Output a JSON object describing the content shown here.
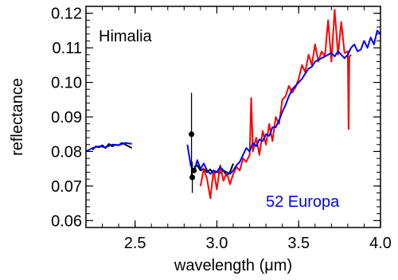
{
  "chart_data": {
    "type": "line",
    "title": "",
    "xlabel": "wavelength (μm)",
    "ylabel": "reflectance",
    "xlim": [
      2.2,
      4.0
    ],
    "ylim": [
      0.058,
      0.122
    ],
    "x_ticks": [
      2.5,
      3.0,
      3.5,
      4.0
    ],
    "x_tick_labels": [
      "2.5",
      "3.0",
      "3.5",
      "4.0"
    ],
    "y_ticks": [
      0.06,
      0.07,
      0.08,
      0.09,
      0.1,
      0.11,
      0.12
    ],
    "y_tick_labels": [
      "0.06",
      "0.07",
      "0.08",
      "0.09",
      "0.10",
      "0.11",
      "0.12"
    ],
    "grid": false,
    "annotations": [
      {
        "text": "Himalia",
        "color": "#000000",
        "position": "top-left"
      },
      {
        "text": "52 Europa",
        "color": "#0000ff",
        "position": "bottom-right"
      }
    ],
    "series": [
      {
        "name": "Himalia (black)",
        "color": "#000000",
        "x": [
          2.24,
          2.26,
          2.28,
          2.3,
          2.32,
          2.34,
          2.36,
          2.38,
          2.4,
          2.42,
          2.44,
          2.46,
          2.48,
          2.86,
          2.88,
          2.9,
          2.92,
          2.94,
          2.96,
          2.98,
          3.0,
          3.02,
          3.04,
          3.06,
          3.08,
          3.1
        ],
        "y": [
          0.0805,
          0.0815,
          0.0812,
          0.0818,
          0.081,
          0.0822,
          0.0815,
          0.082,
          0.0818,
          0.0825,
          0.082,
          0.0815,
          0.081,
          0.0755,
          0.076,
          0.0745,
          0.075,
          0.074,
          0.0748,
          0.0735,
          0.0742,
          0.0738,
          0.0745,
          0.073,
          0.074,
          0.0765
        ]
      },
      {
        "name": "Himalia points",
        "color": "#000000",
        "points": [
          {
            "x": 2.845,
            "y": 0.085,
            "err": 0.012
          },
          {
            "x": 2.85,
            "y": 0.0725,
            "err": 0.0045
          },
          {
            "x": 2.86,
            "y": 0.0745,
            "err": 0.0
          }
        ]
      },
      {
        "name": "Himalia (red)",
        "color": "#ff0000",
        "x": [
          2.9,
          2.92,
          2.94,
          2.96,
          2.98,
          3.0,
          3.02,
          3.04,
          3.06,
          3.08,
          3.1,
          3.12,
          3.14,
          3.16,
          3.18,
          3.2,
          3.21,
          3.22,
          3.24,
          3.26,
          3.28,
          3.3,
          3.32,
          3.34,
          3.36,
          3.38,
          3.4,
          3.42,
          3.44,
          3.46,
          3.48,
          3.5,
          3.52,
          3.54,
          3.56,
          3.58,
          3.6,
          3.62,
          3.64,
          3.66,
          3.68,
          3.7,
          3.72,
          3.74,
          3.76,
          3.78,
          3.8,
          3.805,
          3.81,
          3.82
        ],
        "y": [
          0.07,
          0.075,
          0.072,
          0.0665,
          0.0745,
          0.069,
          0.076,
          0.0715,
          0.074,
          0.0705,
          0.0735,
          0.0755,
          0.0745,
          0.078,
          0.077,
          0.079,
          0.0955,
          0.08,
          0.084,
          0.079,
          0.086,
          0.082,
          0.088,
          0.083,
          0.09,
          0.088,
          0.095,
          0.096,
          0.099,
          0.097,
          0.0985,
          0.101,
          0.105,
          0.103,
          0.108,
          0.105,
          0.111,
          0.106,
          0.109,
          0.1075,
          0.118,
          0.106,
          0.121,
          0.108,
          0.1175,
          0.1085,
          0.109,
          0.0865,
          0.1075,
          0.108
        ]
      },
      {
        "name": "52 Europa",
        "color": "#0000ff",
        "x": [
          2.2,
          2.24,
          2.28,
          2.32,
          2.36,
          2.4,
          2.44,
          2.48,
          2.82,
          2.84,
          2.86,
          2.88,
          2.9,
          2.92,
          2.94,
          2.96,
          2.98,
          3.0,
          3.02,
          3.04,
          3.06,
          3.08,
          3.1,
          3.12,
          3.14,
          3.16,
          3.18,
          3.2,
          3.22,
          3.24,
          3.26,
          3.28,
          3.3,
          3.32,
          3.34,
          3.36,
          3.38,
          3.4,
          3.42,
          3.44,
          3.46,
          3.48,
          3.5,
          3.52,
          3.54,
          3.56,
          3.58,
          3.6,
          3.62,
          3.64,
          3.66,
          3.68,
          3.7,
          3.72,
          3.74,
          3.76,
          3.78,
          3.8,
          3.82,
          3.84,
          3.86,
          3.88,
          3.9,
          3.92,
          3.94,
          3.96,
          3.98,
          4.0
        ],
        "y": [
          0.08,
          0.081,
          0.0815,
          0.0812,
          0.082,
          0.0818,
          0.0825,
          0.0822,
          0.082,
          0.076,
          0.074,
          0.0775,
          0.075,
          0.0765,
          0.0745,
          0.0735,
          0.0745,
          0.074,
          0.0755,
          0.0745,
          0.074,
          0.0735,
          0.0745,
          0.076,
          0.077,
          0.079,
          0.081,
          0.08,
          0.0825,
          0.0815,
          0.0835,
          0.083,
          0.085,
          0.0845,
          0.087,
          0.087,
          0.089,
          0.0915,
          0.0935,
          0.096,
          0.098,
          0.099,
          0.1,
          0.101,
          0.1025,
          0.104,
          0.1045,
          0.106,
          0.1065,
          0.107,
          0.1075,
          0.108,
          0.1085,
          0.1075,
          0.109,
          0.108,
          0.107,
          0.108,
          0.11,
          0.111,
          0.109,
          0.1095,
          0.112,
          0.11,
          0.113,
          0.111,
          0.115,
          0.114
        ]
      }
    ]
  }
}
